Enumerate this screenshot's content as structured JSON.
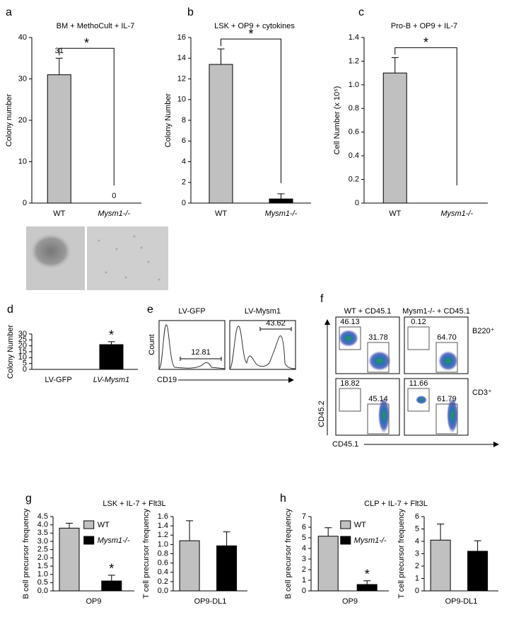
{
  "chart_data": [
    {
      "type": "bar",
      "panel": "a",
      "title": "BM + MethoCult + IL-7",
      "ylabel": "Colony number",
      "categories": [
        "WT",
        "Mysm1-/-"
      ],
      "values": [
        31,
        0
      ],
      "errors": [
        4,
        0
      ],
      "show_values": true,
      "colors": [
        "#c0c0c0",
        "#000000"
      ],
      "ylim": [
        0,
        40
      ],
      "yticks": [
        0,
        10,
        20,
        30,
        40
      ],
      "significance": "*",
      "bracket": true
    },
    {
      "type": "bar",
      "panel": "b",
      "title": "LSK + OP9 + cytokines",
      "ylabel": "Colony Number",
      "categories": [
        "WT",
        "Mysm1-/-"
      ],
      "values": [
        13.4,
        0.4
      ],
      "errors": [
        1.5,
        0.5
      ],
      "colors": [
        "#c0c0c0",
        "#000000"
      ],
      "ylim": [
        0,
        16
      ],
      "yticks": [
        0,
        2,
        4,
        6,
        8,
        10,
        12,
        14,
        16
      ],
      "significance": "*",
      "bracket": true
    },
    {
      "type": "bar",
      "panel": "c",
      "title": "Pro-B + OP9 + IL-7",
      "ylabel": "Cell Number (x 10⁵)",
      "categories": [
        "WT",
        "Mysm1-/-"
      ],
      "values": [
        1.1,
        0
      ],
      "errors": [
        0.13,
        0
      ],
      "colors": [
        "#c0c0c0",
        "#000000"
      ],
      "ylim": [
        0,
        1.4
      ],
      "yticks": [
        0,
        0.2,
        0.4,
        0.6,
        0.8,
        {
          "value": 1,
          "label": "1.0"
        },
        1.2,
        1.4
      ],
      "significance": "*",
      "bracket": true
    },
    {
      "type": "bar",
      "panel": "d",
      "ylabel": "Colony Number",
      "categories": [
        "LV-GFP",
        "LV-Mysm1"
      ],
      "values": [
        0,
        21
      ],
      "errors": [
        0,
        2.5
      ],
      "colors": [
        "#c0c0c0",
        "#000000"
      ],
      "ylim": [
        0,
        30
      ],
      "yticks": [
        0,
        5,
        10,
        15,
        20,
        25,
        30
      ],
      "significance": "*",
      "bracket": false
    },
    {
      "type": "flow-histogram",
      "panel": "e",
      "ylabel": "Count",
      "xlabel": "CD19",
      "titles": [
        "LV-GFP",
        "LV-Mysm1"
      ],
      "values": [
        12.81,
        43.62
      ]
    },
    {
      "type": "flow-dotplot",
      "panel": "f",
      "xlabel": "CD45.1",
      "ylabel": "CD45.2",
      "columns": [
        "WT + CD45.1",
        "Mysm1-/- + CD45.1"
      ],
      "rows": [
        "B220⁺",
        "CD3⁺"
      ],
      "values": [
        46.13,
        31.78,
        0.12,
        64.7,
        18.82,
        45.14,
        11.66,
        61.79
      ],
      "value_labels": [
        "46.13",
        "31.78",
        "0.12",
        "64.70",
        "18.82",
        "45.14",
        "11.66",
        "61.79"
      ]
    },
    {
      "type": "bar",
      "panel": "g",
      "title": "LSK + IL-7 + Flt3L",
      "ylabel": "B cell precursor frequency",
      "categories": [
        "OP9"
      ],
      "series": [
        {
          "name": "WT",
          "color": "#c0c0c0",
          "values": [
            3.8
          ],
          "errors": [
            0.3
          ]
        },
        {
          "name": "Mysm1-/-",
          "color": "#000000",
          "values": [
            0.6
          ],
          "errors": [
            0.35
          ]
        }
      ],
      "ylim": [
        0,
        4.5
      ],
      "yticks": [
        {
          "value": 0,
          "label": "0.0"
        },
        0.5,
        {
          "value": 1,
          "label": "1.0"
        },
        1.5,
        {
          "value": 2,
          "label": "2.0"
        },
        2.5,
        {
          "value": 3,
          "label": "3.0"
        },
        3.5,
        {
          "value": 4,
          "label": "4.0"
        },
        4.5
      ],
      "legend": "top",
      "significance": "*"
    },
    {
      "type": "bar",
      "ylabel": "T cell precursor frequency",
      "categories": [
        "OP9-DL1"
      ],
      "series": [
        {
          "color": "#c0c0c0",
          "values": [
            1.08
          ],
          "errors": [
            0.43
          ]
        },
        {
          "color": "#000000",
          "values": [
            0.97
          ],
          "errors": [
            0.3
          ]
        }
      ],
      "ylim": [
        0,
        1.6
      ],
      "yticks": [
        {
          "value": 0,
          "label": "0.0"
        },
        0.2,
        0.4,
        0.6,
        0.8,
        {
          "value": 1,
          "label": "1.0"
        },
        1.2,
        1.4,
        1.6
      ]
    },
    {
      "type": "bar",
      "panel": "h",
      "title": "CLP + IL-7 + Flt3L",
      "ylabel": "B cell precursor frequency",
      "categories": [
        "OP9"
      ],
      "series": [
        {
          "name": "WT",
          "color": "#c0c0c0",
          "values": [
            5.15
          ],
          "errors": [
            0.8
          ]
        },
        {
          "name": "Mysm1-/-",
          "color": "#000000",
          "values": [
            0.6
          ],
          "errors": [
            0.35
          ]
        }
      ],
      "ylim": [
        0,
        7
      ],
      "yticks": [
        0,
        1,
        2,
        3,
        4,
        5,
        6,
        7
      ],
      "legend": "top",
      "significance": "*"
    },
    {
      "type": "bar",
      "ylabel": "T cell precursor frequency",
      "categories": [
        "OP9-DL1"
      ],
      "series": [
        {
          "color": "#c0c0c0",
          "values": [
            4.1
          ],
          "errors": [
            1.3
          ]
        },
        {
          "color": "#000000",
          "values": [
            3.2
          ],
          "errors": [
            0.85
          ]
        }
      ],
      "ylim": [
        0,
        6
      ],
      "yticks": [
        0,
        1,
        2,
        3,
        4,
        5,
        6
      ]
    }
  ]
}
